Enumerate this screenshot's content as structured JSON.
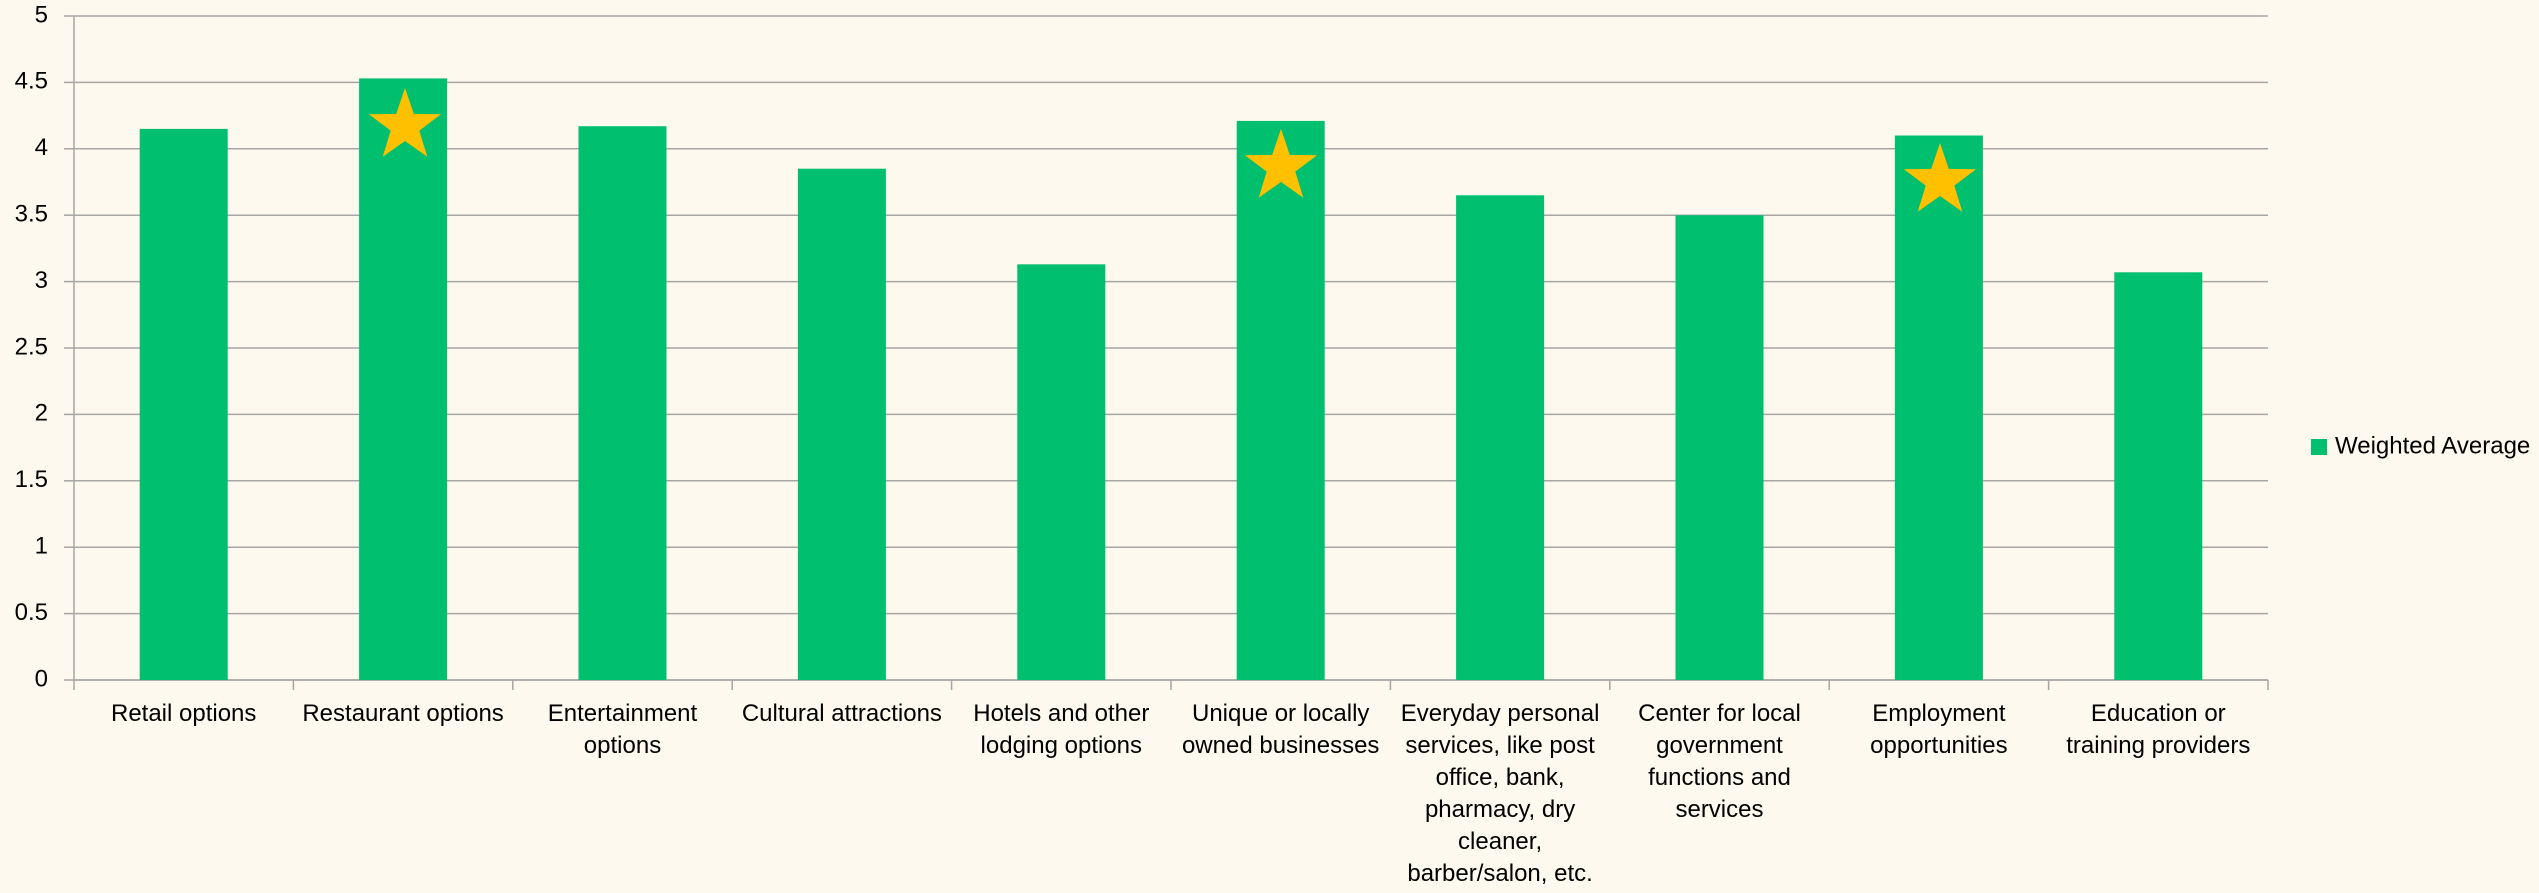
{
  "chart_data": {
    "type": "bar",
    "categories": [
      "Retail options",
      "Restaurant options",
      "Entertainment options",
      "Cultural attractions",
      "Hotels and other lodging options",
      "Unique or locally owned businesses",
      "Everyday personal services, like post office, bank, pharmacy, dry cleaner, barber/salon, etc.",
      "Center for local government functions and services",
      "Employment opportunities",
      "Education or training providers"
    ],
    "series": [
      {
        "name": "Weighted Average",
        "color": "#00bf6f",
        "values": [
          4.15,
          4.53,
          4.17,
          3.85,
          3.13,
          4.21,
          3.65,
          3.5,
          4.1,
          3.07
        ]
      }
    ],
    "ylim": [
      0,
      5
    ],
    "yticks": [
      0,
      0.5,
      1,
      1.5,
      2,
      2.5,
      3,
      3.5,
      4,
      4.5,
      5
    ],
    "grid": true,
    "legend": "right"
  }
}
